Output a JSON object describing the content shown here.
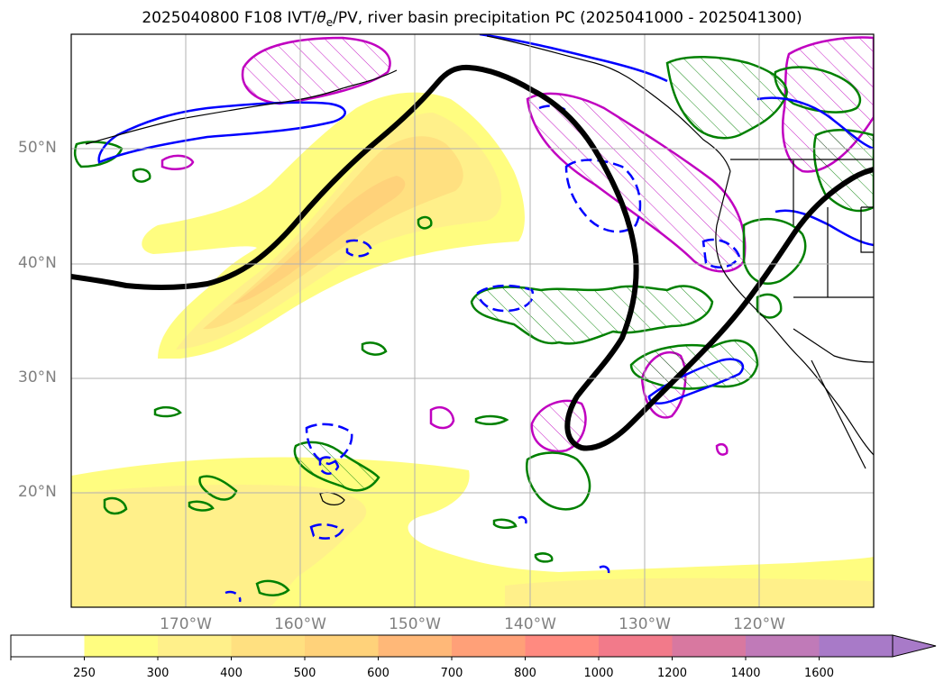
{
  "title": {
    "prefix": "2025040800 F108 IVT/",
    "theta": "θ",
    "theta_sub": "e",
    "suffix": "/PV, river basin precipitation PC (2025041000 - 2025041300)"
  },
  "lat_labels": [
    "50°N",
    "40°N",
    "30°N",
    "20°N"
  ],
  "lon_labels": [
    "170°W",
    "160°W",
    "150°W",
    "140°W",
    "130°W",
    "120°W"
  ],
  "colorbar": {
    "ticks": [
      "250",
      "300",
      "400",
      "500",
      "600",
      "700",
      "800",
      "1000",
      "1200",
      "1400",
      "1600"
    ],
    "colors": [
      "#ffffff",
      "#fffd80",
      "#fff08a",
      "#ffe080",
      "#ffd27a",
      "#ffb878",
      "#ffa078",
      "#ff8a80",
      "#f27a8a",
      "#d878a0",
      "#c07ab8",
      "#a87ac8"
    ],
    "extend": "max"
  },
  "contour_colors": {
    "pv": "#000000",
    "theta_e": "#0000ff",
    "precip": "#008000",
    "precip_pc": "#c000c0"
  }
}
